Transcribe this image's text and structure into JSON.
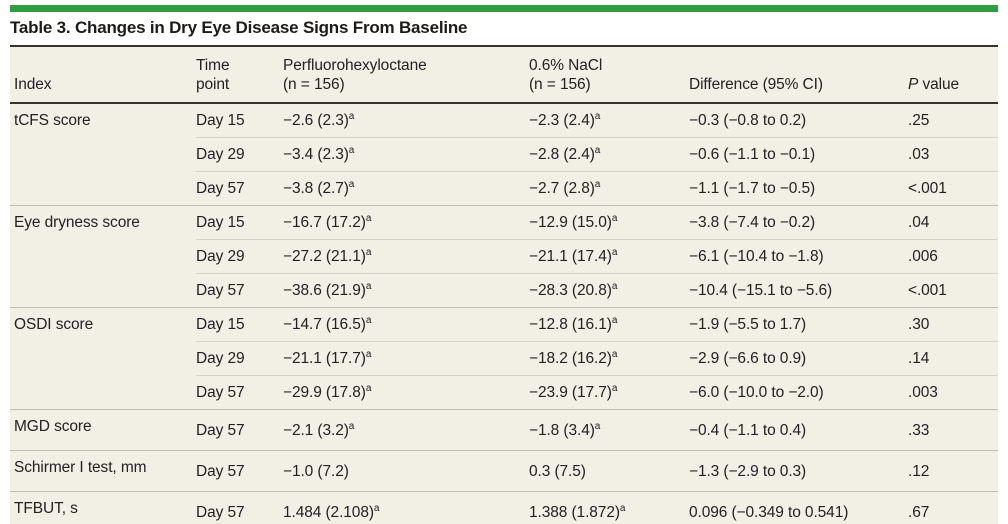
{
  "colors": {
    "accent_green": "#2f9e41",
    "table_background": "#f2efe4",
    "rule_dark": "#35332c",
    "row_line": "#d6d4c6",
    "group_line": "#bfbdaf",
    "text": "#232027"
  },
  "title": "Table 3. Changes in Dry Eye Disease Signs From Baseline",
  "table": {
    "columns": [
      {
        "label": "Index"
      },
      {
        "label": "Time\npoint"
      },
      {
        "label": "Perfluorohexyloctane\n(n = 156)"
      },
      {
        "label": "0.6% NaCl\n(n = 156)"
      },
      {
        "label": "Difference (95% CI)"
      },
      {
        "label_italic": "P",
        "label": " value"
      }
    ],
    "groups": [
      {
        "index": "tCFS score",
        "rows": [
          {
            "time_point": "Day 15",
            "pfho": "−2.6 (2.3)ᵃ",
            "nacl": "−2.3 (2.4)ᵃ",
            "difference": "−0.3 (−0.8 to 0.2)",
            "p_value": ".25"
          },
          {
            "time_point": "Day 29",
            "pfho": "−3.4 (2.3)ᵃ",
            "nacl": "−2.8 (2.4)ᵃ",
            "difference": "−0.6 (−1.1 to −0.1)",
            "p_value": ".03"
          },
          {
            "time_point": "Day 57",
            "pfho": "−3.8 (2.7)ᵃ",
            "nacl": "−2.7 (2.8)ᵃ",
            "difference": "−1.1 (−1.7 to −0.5)",
            "p_value": "<.001"
          }
        ]
      },
      {
        "index": "Eye dryness score",
        "rows": [
          {
            "time_point": "Day 15",
            "pfho": "−16.7 (17.2)ᵃ",
            "nacl": "−12.9 (15.0)ᵃ",
            "difference": "−3.8 (−7.4 to −0.2)",
            "p_value": ".04"
          },
          {
            "time_point": "Day 29",
            "pfho": "−27.2 (21.1)ᵃ",
            "nacl": "−21.1 (17.4)ᵃ",
            "difference": "−6.1 (−10.4 to −1.8)",
            "p_value": ".006"
          },
          {
            "time_point": "Day 57",
            "pfho": "−38.6 (21.9)ᵃ",
            "nacl": "−28.3 (20.8)ᵃ",
            "difference": "−10.4 (−15.1 to −5.6)",
            "p_value": "<.001"
          }
        ]
      },
      {
        "index": "OSDI score",
        "rows": [
          {
            "time_point": "Day 15",
            "pfho": "−14.7 (16.5)ᵃ",
            "nacl": "−12.8 (16.1)ᵃ",
            "difference": "−1.9 (−5.5 to 1.7)",
            "p_value": ".30"
          },
          {
            "time_point": "Day 29",
            "pfho": "−21.1 (17.7)ᵃ",
            "nacl": "−18.2 (16.2)ᵃ",
            "difference": "−2.9 (−6.6 to 0.9)",
            "p_value": ".14"
          },
          {
            "time_point": "Day 57",
            "pfho": "−29.9 (17.8)ᵃ",
            "nacl": "−23.9 (17.7)ᵃ",
            "difference": "−6.0 (−10.0 to −2.0)",
            "p_value": ".003"
          }
        ]
      },
      {
        "index": "MGD score",
        "rows": [
          {
            "time_point": "Day 57",
            "pfho": "−2.1 (3.2)ᵃ",
            "nacl": "−1.8 (3.4)ᵃ",
            "difference": "−0.4 (−1.1 to 0.4)",
            "p_value": ".33"
          }
        ]
      },
      {
        "index": "Schirmer I test, mm",
        "rows": [
          {
            "time_point": "Day 57",
            "pfho": "−1.0 (7.2)",
            "nacl": "0.3 (7.5)",
            "difference": "−1.3 (−2.9 to 0.3)",
            "p_value": ".12"
          }
        ]
      },
      {
        "index": "TFBUT, s",
        "rows": [
          {
            "time_point": "Day 57",
            "pfho": "1.484 (2.108)ᵃ",
            "nacl": "1.388 (1.872)ᵃ",
            "difference": "0.096 (−0.349 to 0.541)",
            "p_value": ".67"
          }
        ]
      }
    ]
  }
}
